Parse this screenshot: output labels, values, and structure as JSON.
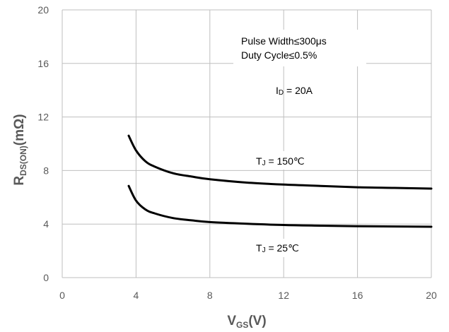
{
  "chart_data": {
    "type": "line",
    "xlabel": {
      "main": "V",
      "sub": "GS",
      "tail": "(V)"
    },
    "ylabel": {
      "main": "R",
      "sub": "DS(ON)",
      "tail": "(mΩ)"
    },
    "xlim": [
      0,
      20
    ],
    "ylim": [
      0,
      20
    ],
    "xticks": [
      0,
      4,
      8,
      12,
      16,
      20
    ],
    "yticks": [
      0,
      4,
      8,
      12,
      16,
      20
    ],
    "grid": true,
    "colors": {
      "gridline": "#bfbfbf",
      "series": "#000000",
      "text": "#595959"
    },
    "series": [
      {
        "name": "TJ = 150℃",
        "x": [
          3.6,
          4.0,
          4.5,
          5.0,
          6.0,
          7.0,
          8.0,
          10.0,
          12.0,
          14.0,
          16.0,
          18.0,
          20.0
        ],
        "y": [
          10.6,
          9.5,
          8.7,
          8.3,
          7.8,
          7.55,
          7.35,
          7.1,
          6.95,
          6.85,
          6.75,
          6.7,
          6.65
        ]
      },
      {
        "name": "TJ = 25℃",
        "x": [
          3.6,
          4.0,
          4.5,
          5.0,
          6.0,
          7.0,
          8.0,
          10.0,
          12.0,
          14.0,
          16.0,
          18.0,
          20.0
        ],
        "y": [
          6.85,
          5.75,
          5.1,
          4.8,
          4.45,
          4.28,
          4.15,
          4.02,
          3.93,
          3.88,
          3.84,
          3.82,
          3.8
        ]
      }
    ],
    "annotations": {
      "pulse_width": "Pulse Width≤300μs",
      "duty_cycle": "Duty Cycle≤0.5%",
      "id_condition": {
        "main": "I",
        "sub": "D",
        "tail": " = 20A"
      },
      "tj_hot": {
        "main": "T",
        "sub": "J",
        "tail": " = 150℃"
      },
      "tj_cold": {
        "main": "T",
        "sub": "J",
        "tail": " = 25℃"
      }
    }
  }
}
